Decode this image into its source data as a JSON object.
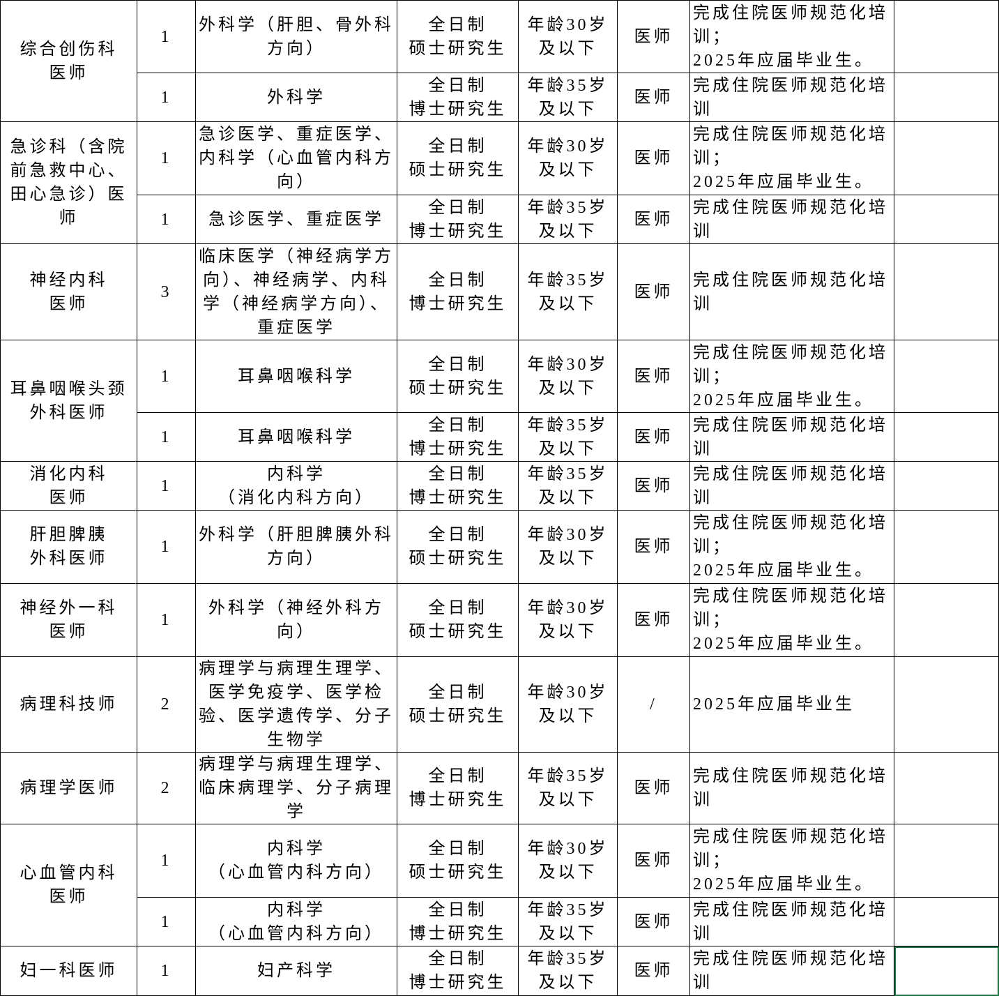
{
  "table": {
    "groups": [
      {
        "department": "综合创伤科\n医师",
        "positions": [
          {
            "count": 1,
            "major": "外科学（肝胆、骨外科方向）",
            "education": "全日制\n硕士研究生",
            "age": "年龄30岁\n及以下",
            "title": "医师",
            "requirement": "完成住院医师规范化培训；\n2025年应届毕业生。"
          },
          {
            "count": 1,
            "major": "外科学",
            "education": "全日制\n博士研究生",
            "age": "年龄35岁\n及以下",
            "title": "医师",
            "requirement": "完成住院医师规范化培训"
          }
        ]
      },
      {
        "department": "急诊科（含院前急救中心、田心急诊）医师",
        "positions": [
          {
            "count": 1,
            "major": "急诊医学、重症医学、内科学（心血管内科方向）",
            "education": "全日制\n硕士研究生",
            "age": "年龄30岁\n及以下",
            "title": "医师",
            "requirement": "完成住院医师规范化培训；\n2025年应届毕业生。"
          },
          {
            "count": 1,
            "major": "急诊医学、重症医学",
            "education": "全日制\n博士研究生",
            "age": "年龄35岁\n及以下",
            "title": "医师",
            "requirement": "完成住院医师规范化培训"
          }
        ]
      },
      {
        "department": "神经内科\n医师",
        "positions": [
          {
            "count": 3,
            "major": "临床医学（神经病学方向）、神经病学、内科学（神经病学方向）、重症医学",
            "education": "全日制\n博士研究生",
            "age": "年龄35岁\n及以下",
            "title": "医师",
            "requirement": "完成住院医师规范化培训"
          }
        ]
      },
      {
        "department": "耳鼻咽喉头颈外科医师",
        "positions": [
          {
            "count": 1,
            "major": "耳鼻咽喉科学",
            "education": "全日制\n硕士研究生",
            "age": "年龄30岁\n及以下",
            "title": "医师",
            "requirement": "完成住院医师规范化培训；\n2025年应届毕业生。"
          },
          {
            "count": 1,
            "major": "耳鼻咽喉科学",
            "education": "全日制\n博士研究生",
            "age": "年龄35岁\n及以下",
            "title": "医师",
            "requirement": "完成住院医师规范化培训"
          }
        ]
      },
      {
        "department": "消化内科\n医师",
        "positions": [
          {
            "count": 1,
            "major": "内科学\n（消化内科方向）",
            "education": "全日制\n博士研究生",
            "age": "年龄35岁\n及以下",
            "title": "医师",
            "requirement": "完成住院医师规范化培训"
          }
        ]
      },
      {
        "department": "肝胆脾胰\n外科医师",
        "positions": [
          {
            "count": 1,
            "major": "外科学（肝胆脾胰外科方向）",
            "education": "全日制\n硕士研究生",
            "age": "年龄30岁\n及以下",
            "title": "医师",
            "requirement": "完成住院医师规范化培训；\n2025年应届毕业生。"
          }
        ]
      },
      {
        "department": "神经外一科\n医师",
        "positions": [
          {
            "count": 1,
            "major": "外科学（神经外科方向）",
            "education": "全日制\n硕士研究生",
            "age": "年龄30岁\n及以下",
            "title": "医师",
            "requirement": "完成住院医师规范化培训；\n2025年应届毕业生。"
          }
        ]
      },
      {
        "department": "病理科技师",
        "positions": [
          {
            "count": 2,
            "major": "病理学与病理生理学、医学免疫学、医学检验、医学遗传学、分子生物学",
            "education": "全日制\n硕士研究生",
            "age": "年龄30岁\n及以下",
            "title": "/",
            "requirement": "2025年应届毕业生"
          }
        ]
      },
      {
        "department": "病理学医师",
        "positions": [
          {
            "count": 2,
            "major": "病理学与病理生理学、临床病理学、分子病理学",
            "education": "全日制\n博士研究生",
            "age": "年龄35岁\n及以下",
            "title": "医师",
            "requirement": "完成住院医师规范化培训"
          }
        ]
      },
      {
        "department": "心血管内科\n医师",
        "positions": [
          {
            "count": 1,
            "major": "内科学\n（心血管内科方向）",
            "education": "全日制\n硕士研究生",
            "age": "年龄30岁\n及以下",
            "title": "医师",
            "requirement": "完成住院医师规范化培训；\n2025年应届毕业生。"
          },
          {
            "count": 1,
            "major": "内科学\n（心血管内科方向）",
            "education": "全日制\n博士研究生",
            "age": "年龄35岁\n及以下",
            "title": "医师",
            "requirement": "完成住院医师规范化培训"
          }
        ]
      },
      {
        "department": "妇一科医师",
        "positions": [
          {
            "count": 1,
            "major": "妇产科学",
            "education": "全日制\n博士研究生",
            "age": "年龄35岁\n及以下",
            "title": "医师",
            "requirement": "完成住院医师规范化培训"
          }
        ]
      }
    ]
  }
}
